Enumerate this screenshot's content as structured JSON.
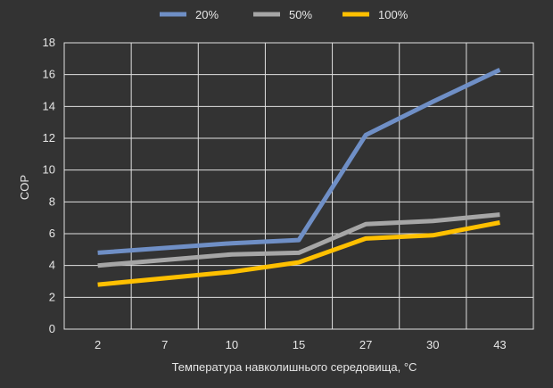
{
  "chart_data": {
    "type": "line",
    "xlabel": "Температура навколишнього середовища, °C",
    "ylabel": "COP",
    "ylim": [
      0,
      18
    ],
    "yticks": [
      0,
      2,
      4,
      6,
      8,
      10,
      12,
      14,
      16,
      18
    ],
    "categories": [
      "2",
      "7",
      "10",
      "15",
      "27",
      "30",
      "43"
    ],
    "grid": true,
    "legend_position": "top",
    "series": [
      {
        "name": "20%",
        "color": "#6f8fc6",
        "points": [
          {
            "x": "2",
            "y": 4.8
          },
          {
            "x": "10",
            "y": 5.4
          },
          {
            "x": "15",
            "y": 5.6
          },
          {
            "x": "27",
            "y": 12.2
          },
          {
            "x": "30",
            "y": 14.3
          },
          {
            "x": "43",
            "y": 16.3
          }
        ]
      },
      {
        "name": "50%",
        "color": "#a6a6a6",
        "points": [
          {
            "x": "2",
            "y": 4.0
          },
          {
            "x": "10",
            "y": 4.7
          },
          {
            "x": "15",
            "y": 4.8
          },
          {
            "x": "27",
            "y": 6.6
          },
          {
            "x": "30",
            "y": 6.8
          },
          {
            "x": "43",
            "y": 7.2
          }
        ]
      },
      {
        "name": "100%",
        "color": "#ffc000",
        "points": [
          {
            "x": "2",
            "y": 2.8
          },
          {
            "x": "10",
            "y": 3.6
          },
          {
            "x": "15",
            "y": 4.2
          },
          {
            "x": "27",
            "y": 5.7
          },
          {
            "x": "30",
            "y": 5.9
          },
          {
            "x": "43",
            "y": 6.7
          }
        ]
      }
    ]
  }
}
